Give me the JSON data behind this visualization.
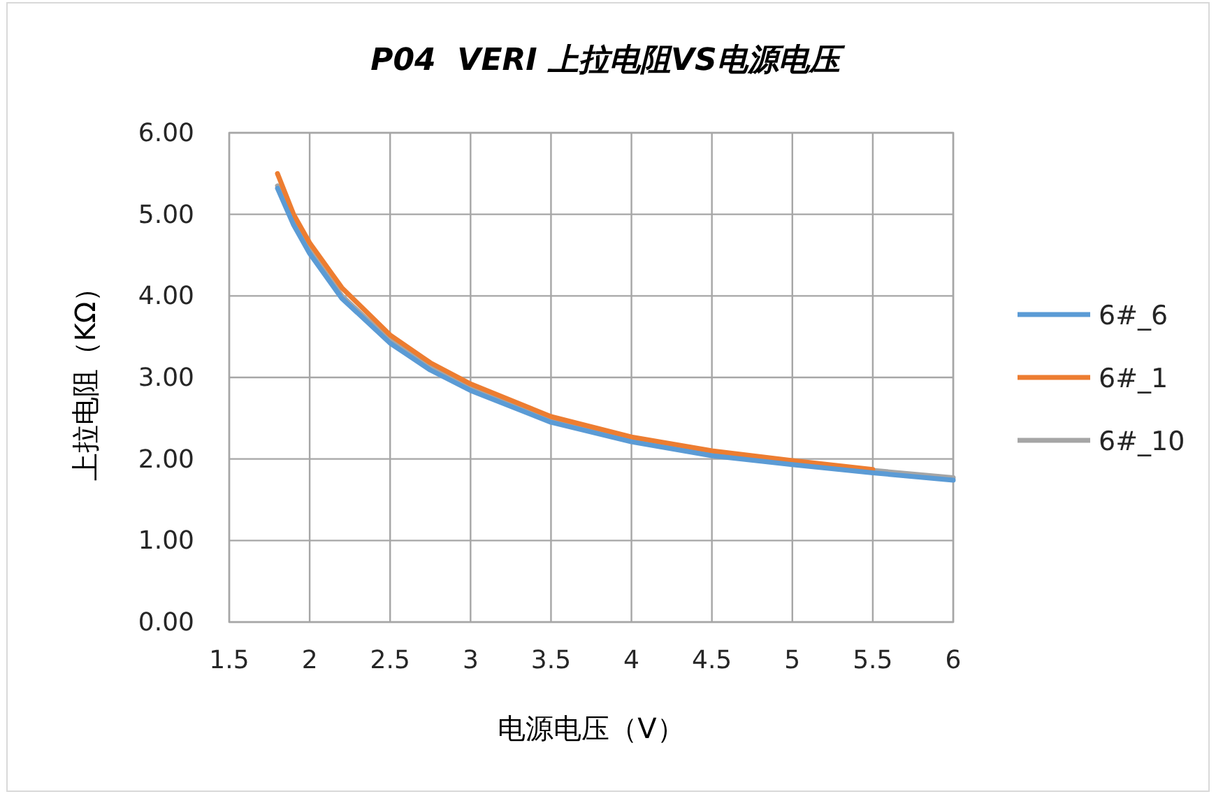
{
  "chart_data": {
    "type": "line",
    "title": "P04  VERI 上拉电阻VS电源电压",
    "xlabel": "电源电压（V）",
    "ylabel": "上拉电阻（KΩ）",
    "x": [
      1.8,
      1.9,
      2.0,
      2.2,
      2.5,
      2.75,
      3,
      3.5,
      4,
      4.5,
      5,
      5.5,
      6
    ],
    "series": [
      {
        "name": "6#_6",
        "color": "#5b9bd5",
        "values": [
          5.32,
          4.87,
          4.52,
          3.97,
          3.42,
          3.09,
          2.84,
          2.45,
          2.21,
          2.04,
          1.93,
          1.83,
          1.74
        ]
      },
      {
        "name": "6#_1",
        "color": "#ed7d31",
        "values": [
          5.5,
          5.0,
          4.65,
          4.1,
          3.52,
          3.18,
          2.92,
          2.52,
          2.27,
          2.1,
          1.98,
          1.87,
          null
        ]
      },
      {
        "name": "6#_10",
        "color": "#a5a5a5",
        "values": [
          5.35,
          4.9,
          4.55,
          4.0,
          3.45,
          3.12,
          2.87,
          2.48,
          2.24,
          2.07,
          1.96,
          1.86,
          1.77
        ]
      }
    ],
    "xlim": [
      1.5,
      6
    ],
    "xticks": [
      1.5,
      2,
      2.5,
      3,
      3.5,
      4,
      4.5,
      5,
      5.5,
      6
    ],
    "ylim": [
      0,
      6
    ],
    "yticks": [
      {
        "value": 0,
        "label": "0.00"
      },
      {
        "value": 1,
        "label": "1.00"
      },
      {
        "value": 2,
        "label": "2.00"
      },
      {
        "value": 3,
        "label": "3.00"
      },
      {
        "value": 4,
        "label": "4.00"
      },
      {
        "value": 5,
        "label": "5.00"
      },
      {
        "value": 6,
        "label": "6.00"
      }
    ],
    "grid": true,
    "legend": "right",
    "marker": "none",
    "line_style": "solid"
  }
}
